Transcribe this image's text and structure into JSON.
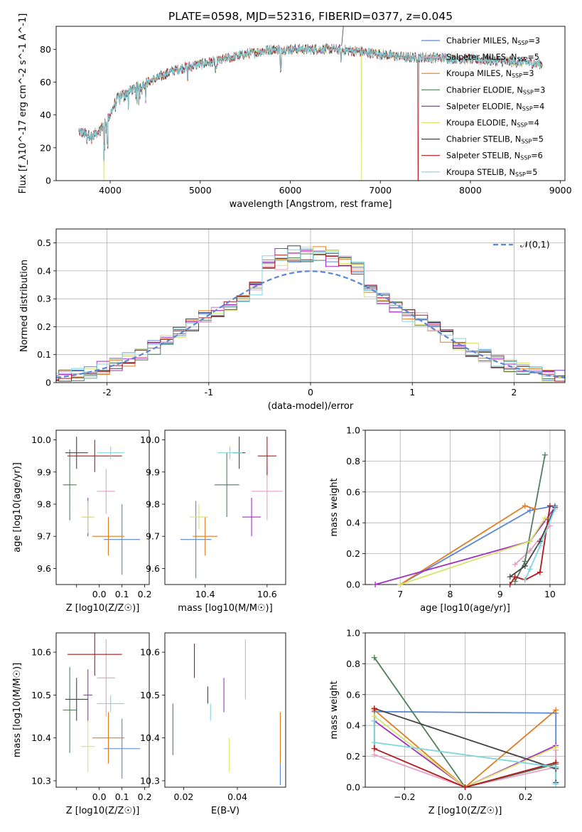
{
  "colors": {
    "Chabrier MILES": "#5a86d6",
    "Salpeter MILES": "#e6a0c4",
    "Kroupa MILES": "#e07b1f",
    "Chabrier ELODIE": "#4f7f5a",
    "Salpeter ELODIE": "#a02fc7",
    "Kroupa ELODIE": "#d9e36a",
    "Chabrier STELIB": "#444444",
    "Salpeter STELIB": "#b0181c",
    "Kroupa STELIB": "#7fd6dc",
    "normal": "#5a86d6"
  },
  "chart_data": [
    {
      "type": "line",
      "title": "PLATE=0598, MJD=52316, FIBERID=0377, z=0.045",
      "xlabel": "wavelength [Angstrom, rest frame]",
      "ylabel": "Flux [f_λ10^-17 erg cm^-2 s^-1 A^-1]",
      "xlim": [
        3400,
        9050
      ],
      "ylim": [
        0,
        94
      ],
      "xticks": [
        4000,
        5000,
        6000,
        7000,
        8000,
        9000
      ],
      "yticks": [
        0,
        20,
        40,
        60,
        80
      ],
      "legend": "upper-right",
      "series": [
        {
          "name": "Chabrier MILES, N_SSP=3",
          "color": "Chabrier MILES"
        },
        {
          "name": "Salpeter MILES, N_SSP=5",
          "color": "Salpeter MILES"
        },
        {
          "name": "Kroupa MILES, N_SSP=3",
          "color": "Kroupa MILES"
        },
        {
          "name": "Chabrier ELODIE, N_SSP=3",
          "color": "Chabrier ELODIE"
        },
        {
          "name": "Salpeter ELODIE, N_SSP=4",
          "color": "Salpeter ELODIE"
        },
        {
          "name": "Kroupa ELODIE, N_SSP=4",
          "color": "Kroupa ELODIE"
        },
        {
          "name": "Chabrier STELIB, N_SSP=5",
          "color": "Chabrier STELIB"
        },
        {
          "name": "Salpeter STELIB, N_SSP=6",
          "color": "Salpeter STELIB"
        },
        {
          "name": "Kroupa STELIB, N_SSP=5",
          "color": "Kroupa STELIB"
        }
      ],
      "continuum": [
        [
          3650,
          30
        ],
        [
          3800,
          27
        ],
        [
          3900,
          32
        ],
        [
          4000,
          40
        ],
        [
          4050,
          47
        ],
        [
          4100,
          52
        ],
        [
          4200,
          54
        ],
        [
          4300,
          57
        ],
        [
          4500,
          62
        ],
        [
          4700,
          67
        ],
        [
          5000,
          71
        ],
        [
          5200,
          73
        ],
        [
          5500,
          77
        ],
        [
          5800,
          80
        ],
        [
          6000,
          80
        ],
        [
          6300,
          80
        ],
        [
          6500,
          80
        ],
        [
          6700,
          79
        ],
        [
          7000,
          77
        ],
        [
          7300,
          75
        ],
        [
          7600,
          75
        ],
        [
          8000,
          74
        ],
        [
          8300,
          73
        ],
        [
          8600,
          72
        ],
        [
          8800,
          71
        ]
      ],
      "dropouts": [
        [
          3930,
          "Kroupa ELODIE"
        ],
        [
          6790,
          "Kroupa ELODIE"
        ],
        [
          7420,
          "Salpeter STELIB"
        ]
      ]
    },
    {
      "type": "histogram",
      "xlabel": "(data-model)/error",
      "ylabel": "Normed distribution",
      "xlim": [
        -2.5,
        2.5
      ],
      "ylim": [
        0,
        0.55
      ],
      "xticks": [
        -2,
        -1,
        0,
        1,
        2
      ],
      "yticks": [
        0.0,
        0.1,
        0.2,
        0.3,
        0.4,
        0.5
      ],
      "grid": true,
      "legend": "upper-right",
      "legend_label": "𝒩(0,1)",
      "reference": "normal(0,1)",
      "bin_width": 0.125
    },
    {
      "type": "errorbar",
      "xlabel": "Z [log10(Z/Z☉)]",
      "ylabel": "age  [log10(age/yr)]",
      "xlim": [
        -0.19,
        0.22
      ],
      "ylim": [
        9.55,
        10.03
      ],
      "xticks": [
        -0.1,
        0.0,
        0.1,
        0.2
      ],
      "xtick_labels": [
        "",
        "0.0",
        "0.1",
        "0.2"
      ],
      "yticks": [
        9.6,
        9.7,
        9.8,
        9.9,
        10.0
      ],
      "points": [
        {
          "model": "Chabrier MILES",
          "x": 0.1,
          "y": 9.69,
          "xerr": 0.08,
          "yerr": 0.11
        },
        {
          "model": "Salpeter MILES",
          "x": 0.03,
          "y": 9.84,
          "xerr": 0.04,
          "yerr": 0.07
        },
        {
          "model": "Kroupa MILES",
          "x": 0.04,
          "y": 9.7,
          "xerr": 0.07,
          "yerr": 0.06
        },
        {
          "model": "Chabrier ELODIE",
          "x": -0.13,
          "y": 9.86,
          "xerr": 0.03,
          "yerr": 0.11
        },
        {
          "model": "Salpeter ELODIE",
          "x": -0.05,
          "y": 9.76,
          "xerr": 0.02,
          "yerr": 0.06
        },
        {
          "model": "Kroupa ELODIE",
          "x": -0.05,
          "y": 9.76,
          "xerr": 0.03,
          "yerr": 0.05
        },
        {
          "model": "Chabrier STELIB",
          "x": -0.1,
          "y": 9.96,
          "xerr": 0.05,
          "yerr": 0.05
        },
        {
          "model": "Salpeter STELIB",
          "x": -0.02,
          "y": 9.95,
          "xerr": 0.12,
          "yerr": 0.05
        },
        {
          "model": "Kroupa STELIB",
          "x": 0.05,
          "y": 9.96,
          "xerr": 0.06,
          "yerr": 0.02
        }
      ]
    },
    {
      "type": "errorbar",
      "xlabel": "mass [log10(M/M☉)]",
      "ylabel": "",
      "xlim": [
        10.27,
        10.66
      ],
      "ylim": [
        9.55,
        10.03
      ],
      "xticks": [
        10.4,
        10.6
      ],
      "xtick_labels": [
        "10.4",
        "10.6"
      ],
      "yticks": [
        9.6,
        9.7,
        9.8,
        9.9,
        10.0
      ],
      "points": [
        {
          "model": "Chabrier MILES",
          "x": 10.37,
          "y": 9.69,
          "xerr": 0.05,
          "yerr": 0.12
        },
        {
          "model": "Salpeter MILES",
          "x": 10.6,
          "y": 9.84,
          "xerr": 0.05,
          "yerr": 0.09
        },
        {
          "model": "Kroupa MILES",
          "x": 10.4,
          "y": 9.7,
          "xerr": 0.04,
          "yerr": 0.06
        },
        {
          "model": "Chabrier ELODIE",
          "x": 10.47,
          "y": 9.86,
          "xerr": 0.04,
          "yerr": 0.1
        },
        {
          "model": "Salpeter ELODIE",
          "x": 10.55,
          "y": 9.76,
          "xerr": 0.03,
          "yerr": 0.06
        },
        {
          "model": "Kroupa ELODIE",
          "x": 10.38,
          "y": 9.76,
          "xerr": 0.03,
          "yerr": 0.04
        },
        {
          "model": "Chabrier STELIB",
          "x": 10.51,
          "y": 9.96,
          "xerr": 0.02,
          "yerr": 0.05
        },
        {
          "model": "Salpeter STELIB",
          "x": 10.6,
          "y": 9.95,
          "xerr": 0.03,
          "yerr": 0.06
        },
        {
          "model": "Kroupa STELIB",
          "x": 10.48,
          "y": 9.96,
          "xerr": 0.04,
          "yerr": 0.02
        }
      ]
    },
    {
      "type": "line",
      "xlabel": "age  [log10(age/yr)]",
      "ylabel": "mass weight",
      "xlim": [
        6.3,
        10.3
      ],
      "ylim": [
        0,
        1.0
      ],
      "xticks": [
        7,
        8,
        9,
        10
      ],
      "yticks": [
        0.0,
        0.2,
        0.4,
        0.6,
        0.8,
        1.0
      ],
      "grid": true,
      "series": [
        {
          "model": "Chabrier MILES",
          "points": [
            [
              7.0,
              0.0
            ],
            [
              9.6,
              0.48
            ],
            [
              10.1,
              0.51
            ]
          ]
        },
        {
          "model": "Salpeter MILES",
          "points": [
            [
              9.3,
              0.13
            ],
            [
              9.6,
              0.22
            ],
            [
              10.0,
              0.38
            ]
          ]
        },
        {
          "model": "Kroupa MILES",
          "points": [
            [
              7.0,
              0.0
            ],
            [
              9.5,
              0.51
            ],
            [
              9.7,
              0.49
            ]
          ]
        },
        {
          "model": "Chabrier ELODIE",
          "points": [
            [
              9.3,
              0.02
            ],
            [
              9.5,
              0.15
            ],
            [
              9.9,
              0.84
            ]
          ]
        },
        {
          "model": "Salpeter ELODIE",
          "points": [
            [
              6.5,
              0.0
            ],
            [
              9.6,
              0.28
            ],
            [
              10.1,
              0.5
            ]
          ]
        },
        {
          "model": "Kroupa ELODIE",
          "points": [
            [
              7.0,
              0.0
            ],
            [
              9.6,
              0.28
            ],
            [
              9.9,
              0.43
            ]
          ]
        },
        {
          "model": "Chabrier STELIB",
          "points": [
            [
              9.2,
              0.05
            ],
            [
              9.5,
              0.12
            ],
            [
              9.8,
              0.28
            ],
            [
              10.1,
              0.5
            ]
          ]
        },
        {
          "model": "Salpeter STELIB",
          "points": [
            [
              9.2,
              0.0
            ],
            [
              9.3,
              0.05
            ],
            [
              9.5,
              0.03
            ],
            [
              9.8,
              0.08
            ],
            [
              10.0,
              0.51
            ]
          ]
        },
        {
          "model": "Kroupa STELIB",
          "points": [
            [
              9.5,
              0.03
            ],
            [
              9.6,
              0.1
            ],
            [
              9.8,
              0.25
            ],
            [
              10.1,
              0.49
            ]
          ]
        }
      ]
    },
    {
      "type": "errorbar",
      "xlabel": "Z [log10(Z/Z☉)]",
      "ylabel": "mass [log10(M/M☉)]",
      "xlim": [
        -0.19,
        0.22
      ],
      "ylim": [
        10.285,
        10.645
      ],
      "xticks": [
        -0.1,
        0.0,
        0.1,
        0.2
      ],
      "xtick_labels": [
        "",
        "0.0",
        "0.1",
        "0.2"
      ],
      "yticks": [
        10.3,
        10.4,
        10.5,
        10.6
      ],
      "points": [
        {
          "model": "Chabrier MILES",
          "x": 0.1,
          "y": 10.375,
          "xerr": 0.08,
          "yerr": 0.07
        },
        {
          "model": "Salpeter MILES",
          "x": 0.03,
          "y": 10.54,
          "xerr": 0.04,
          "yerr": 0.09
        },
        {
          "model": "Kroupa MILES",
          "x": 0.04,
          "y": 10.4,
          "xerr": 0.07,
          "yerr": 0.06
        },
        {
          "model": "Chabrier ELODIE",
          "x": -0.13,
          "y": 10.465,
          "xerr": 0.03,
          "yerr": 0.1
        },
        {
          "model": "Salpeter ELODIE",
          "x": -0.05,
          "y": 10.5,
          "xerr": 0.02,
          "yerr": 0.06
        },
        {
          "model": "Kroupa ELODIE",
          "x": -0.05,
          "y": 10.38,
          "xerr": 0.03,
          "yerr": 0.06
        },
        {
          "model": "Chabrier STELIB",
          "x": -0.1,
          "y": 10.49,
          "xerr": 0.05,
          "yerr": 0.05
        },
        {
          "model": "Salpeter STELIB",
          "x": -0.02,
          "y": 10.595,
          "xerr": 0.12,
          "yerr": 0.05
        },
        {
          "model": "Kroupa STELIB",
          "x": 0.05,
          "y": 10.48,
          "xerr": 0.06,
          "yerr": 0.02
        }
      ]
    },
    {
      "type": "errorbar",
      "xlabel": "E(B-V)",
      "ylabel": "",
      "xlim": [
        0.013,
        0.058
      ],
      "ylim": [
        10.285,
        10.645
      ],
      "xticks": [
        0.02,
        0.04
      ],
      "xtick_labels": [
        "0.02",
        "0.04"
      ],
      "yticks": [
        10.3,
        10.4,
        10.5,
        10.6
      ],
      "points": [
        {
          "model": "Chabrier MILES",
          "x": 0.056,
          "y": 10.33,
          "xerr": 0,
          "yerr": 0.04
        },
        {
          "model": "Salpeter MILES",
          "x": 0.043,
          "y": 10.56,
          "xerr": 0,
          "yerr": 0.07
        },
        {
          "model": "Kroupa MILES",
          "x": 0.056,
          "y": 10.4,
          "xerr": 0,
          "yerr": 0.06
        },
        {
          "model": "Chabrier ELODIE",
          "x": 0.016,
          "y": 10.42,
          "xerr": 0,
          "yerr": 0.06
        },
        {
          "model": "Salpeter ELODIE",
          "x": 0.035,
          "y": 10.5,
          "xerr": 0,
          "yerr": 0.04
        },
        {
          "model": "Kroupa ELODIE",
          "x": 0.037,
          "y": 10.36,
          "xerr": 0,
          "yerr": 0.04
        },
        {
          "model": "Chabrier STELIB",
          "x": 0.029,
          "y": 10.5,
          "xerr": 0,
          "yerr": 0.02
        },
        {
          "model": "Salpeter STELIB",
          "x": 0.024,
          "y": 10.58,
          "xerr": 0,
          "yerr": 0.04
        },
        {
          "model": "Kroupa STELIB",
          "x": 0.03,
          "y": 10.46,
          "xerr": 0,
          "yerr": 0.02
        }
      ]
    },
    {
      "type": "line",
      "xlabel": "Z [log10(Z/Z☉)]",
      "ylabel": "mass weight",
      "xlim": [
        -0.33,
        0.33
      ],
      "ylim": [
        0,
        1.0
      ],
      "xticks": [
        -0.2,
        0.0,
        0.2
      ],
      "xtick_labels": [
        "−0.2",
        "0.0",
        "0.2"
      ],
      "yticks": [
        0.0,
        0.2,
        0.4,
        0.6,
        0.8,
        1.0
      ],
      "grid": true,
      "series": [
        {
          "model": "Chabrier MILES",
          "points": [
            [
              -0.3,
              0.49
            ],
            [
              0.3,
              0.48
            ],
            [
              0.3,
              0.03
            ]
          ]
        },
        {
          "model": "Salpeter MILES",
          "points": [
            [
              -0.3,
              0.21
            ],
            [
              0.0,
              0.0
            ],
            [
              0.3,
              0.13
            ],
            [
              0.3,
              0.24
            ]
          ]
        },
        {
          "model": "Kroupa MILES",
          "points": [
            [
              -0.3,
              0.5
            ],
            [
              0.0,
              0.0
            ],
            [
              0.3,
              0.5
            ]
          ]
        },
        {
          "model": "Chabrier ELODIE",
          "points": [
            [
              -0.3,
              0.84
            ],
            [
              0.0,
              0.0
            ],
            [
              0.3,
              0.15
            ]
          ]
        },
        {
          "model": "Salpeter ELODIE",
          "points": [
            [
              -0.3,
              0.43
            ],
            [
              0.0,
              0.0
            ],
            [
              0.3,
              0.27
            ]
          ]
        },
        {
          "model": "Kroupa ELODIE",
          "points": [
            [
              -0.3,
              0.46
            ],
            [
              0.0,
              0.0
            ],
            [
              0.3,
              0.26
            ]
          ]
        },
        {
          "model": "Chabrier STELIB",
          "points": [
            [
              -0.3,
              0.51
            ],
            [
              0.3,
              0.12
            ],
            [
              0.3,
              0.03
            ]
          ]
        },
        {
          "model": "Salpeter STELIB",
          "points": [
            [
              -0.3,
              0.51
            ],
            [
              -0.3,
              0.25
            ],
            [
              0.0,
              0.0
            ],
            [
              0.3,
              0.16
            ],
            [
              0.3,
              0.13
            ]
          ]
        },
        {
          "model": "Kroupa STELIB",
          "points": [
            [
              -0.3,
              0.43
            ],
            [
              -0.3,
              0.29
            ],
            [
              0.3,
              0.13
            ],
            [
              0.3,
              0.02
            ]
          ]
        }
      ]
    }
  ]
}
